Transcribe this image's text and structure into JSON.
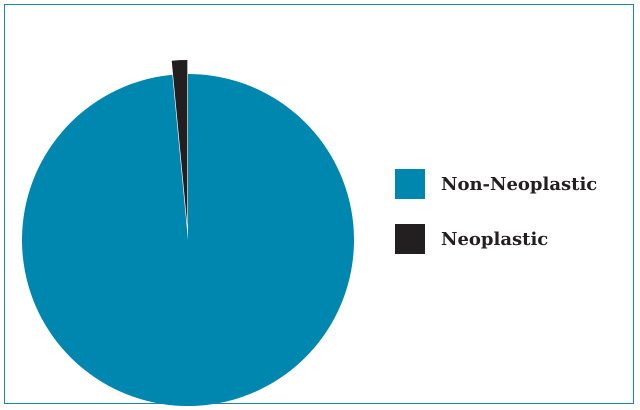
{
  "chart_data": {
    "type": "pie",
    "title": "",
    "slices": [
      {
        "label": "Non-Neoplastic",
        "value": 98.5,
        "color": "#0087b0",
        "exploded": false
      },
      {
        "label": "Neoplastic",
        "value": 1.5,
        "color": "#231f20",
        "exploded": true
      }
    ],
    "legend_position": "right",
    "border_color": "#1b87ad"
  }
}
